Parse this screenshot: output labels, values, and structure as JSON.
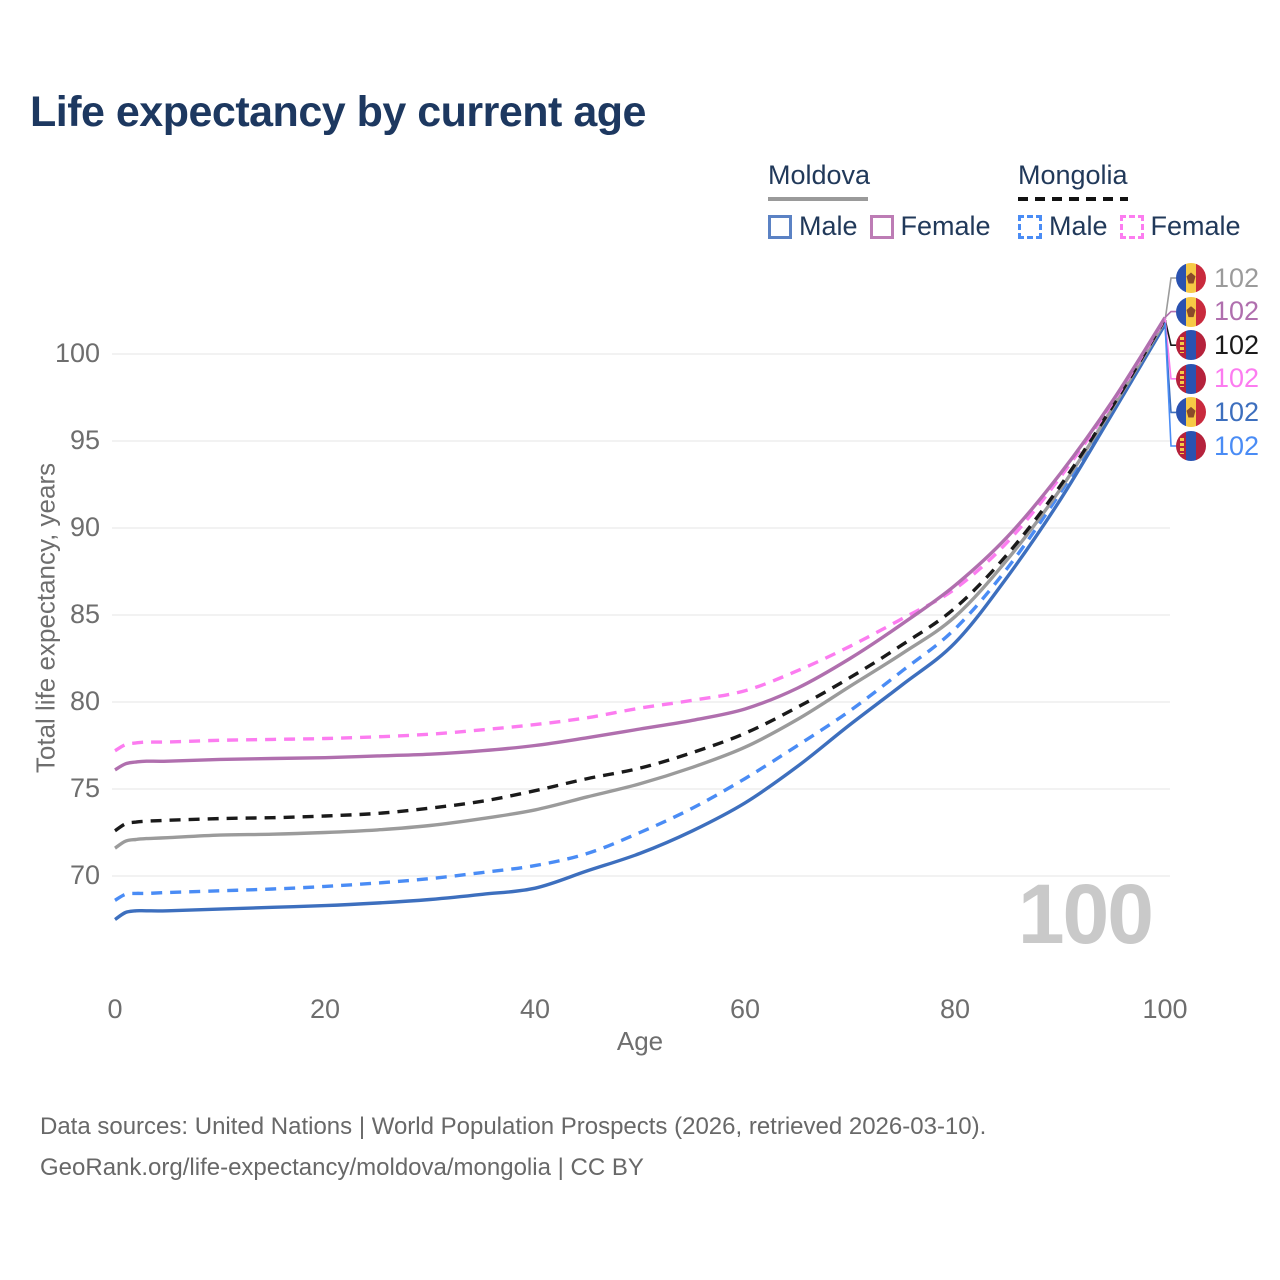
{
  "title": "Life expectancy by current age",
  "legend": {
    "groups": [
      {
        "label": "Moldova",
        "line_style": "solid",
        "underline_color": "#9a9a9a",
        "items": [
          {
            "label": "Male",
            "color": "#5b82c4"
          },
          {
            "label": "Female",
            "color": "#bd7cb5"
          }
        ]
      },
      {
        "label": "Mongolia",
        "line_style": "dashed",
        "underline_color": "#121212",
        "items": [
          {
            "label": "Male",
            "color": "#4a8cf5"
          },
          {
            "label": "Female",
            "color": "#fc7cf0"
          }
        ]
      }
    ]
  },
  "chart_data": {
    "type": "line",
    "title": "Life expectancy by current age",
    "xlabel": "Age",
    "ylabel": "Total life expectancy, years",
    "xticks": [
      0,
      20,
      40,
      60,
      80,
      100
    ],
    "yticks": [
      70,
      75,
      80,
      85,
      90,
      95,
      100
    ],
    "xlim": [
      0,
      100
    ],
    "ylim": [
      66.5,
      103
    ],
    "grid": "horizontal",
    "legend_position": "top-right",
    "watermark": "100",
    "x": [
      0,
      1,
      2,
      3,
      5,
      10,
      15,
      20,
      25,
      30,
      35,
      40,
      45,
      50,
      55,
      60,
      65,
      70,
      75,
      80,
      85,
      90,
      95,
      100
    ],
    "series": [
      {
        "name": "Moldova",
        "country": "Moldova",
        "color": "#9b9b9b",
        "dashed": false,
        "end_label": "102",
        "flag": "moldova",
        "values": [
          71.6,
          72.0,
          72.1,
          72.15,
          72.2,
          72.35,
          72.4,
          72.5,
          72.65,
          72.9,
          73.3,
          73.8,
          74.55,
          75.3,
          76.25,
          77.4,
          79.0,
          80.9,
          82.8,
          84.9,
          88.2,
          92.2,
          96.9,
          101.9
        ]
      },
      {
        "name": "Moldova Female",
        "country": "Moldova",
        "color": "#b06fae",
        "dashed": false,
        "end_label": "102",
        "flag": "moldova",
        "values": [
          76.1,
          76.45,
          76.55,
          76.6,
          76.6,
          76.7,
          76.75,
          76.8,
          76.9,
          77.0,
          77.2,
          77.5,
          77.95,
          78.45,
          78.95,
          79.6,
          80.8,
          82.5,
          84.5,
          86.7,
          89.5,
          93.1,
          97.3,
          102.1
        ]
      },
      {
        "name": "Mongolia",
        "country": "Mongolia",
        "color": "#1a1a1a",
        "dashed": true,
        "end_label": "102",
        "flag": "mongolia",
        "values": [
          72.6,
          73.0,
          73.1,
          73.15,
          73.2,
          73.3,
          73.35,
          73.45,
          73.6,
          73.9,
          74.3,
          74.9,
          75.6,
          76.2,
          77.1,
          78.2,
          79.7,
          81.4,
          83.3,
          85.4,
          88.5,
          92.4,
          97.0,
          102.0
        ]
      },
      {
        "name": "Mongolia Female",
        "country": "Mongolia",
        "color": "#fc7cf0",
        "dashed": true,
        "end_label": "102",
        "flag": "mongolia",
        "values": [
          77.2,
          77.55,
          77.65,
          77.7,
          77.7,
          77.8,
          77.85,
          77.9,
          78.0,
          78.15,
          78.4,
          78.7,
          79.1,
          79.65,
          80.1,
          80.65,
          81.8,
          83.2,
          84.8,
          86.5,
          89.2,
          92.9,
          97.2,
          102.05
        ]
      },
      {
        "name": "Moldova Male",
        "country": "Moldova",
        "color": "#3d6fbe",
        "dashed": false,
        "end_label": "102",
        "flag": "moldova",
        "values": [
          67.5,
          67.9,
          68.0,
          68.0,
          68.0,
          68.1,
          68.2,
          68.3,
          68.45,
          68.65,
          68.95,
          69.3,
          70.3,
          71.3,
          72.6,
          74.2,
          76.3,
          78.7,
          81.0,
          83.4,
          87.2,
          91.6,
          96.6,
          101.7
        ]
      },
      {
        "name": "Mongolia Male",
        "country": "Mongolia",
        "color": "#4a8cf5",
        "dashed": true,
        "end_label": "102",
        "flag": "mongolia",
        "values": [
          68.6,
          68.95,
          69.0,
          69.0,
          69.05,
          69.15,
          69.25,
          69.4,
          69.6,
          69.85,
          70.2,
          70.6,
          71.3,
          72.5,
          73.9,
          75.6,
          77.5,
          79.5,
          81.8,
          84.2,
          87.7,
          92.0,
          96.8,
          101.8
        ]
      }
    ]
  },
  "footer": {
    "line1": "Data sources: United Nations | World Population Prospects (2026, retrieved 2026-03-10).",
    "line2": "GeoRank.org/life-expectancy/moldova/mongolia | CC BY"
  }
}
